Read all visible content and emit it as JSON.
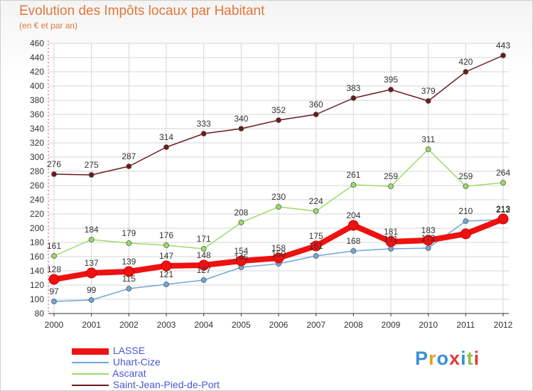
{
  "chart_data": {
    "type": "line",
    "title": "Evolution des Impôts locaux par Habitant",
    "subtitle": "(en € et par an)",
    "x": [
      "2000",
      "2001",
      "2002",
      "2003",
      "2004",
      "2005",
      "2006",
      "2007",
      "2008",
      "2009",
      "2010",
      "2011",
      "2012"
    ],
    "ylim": [
      80,
      460
    ],
    "yticks": [
      80,
      100,
      120,
      140,
      160,
      180,
      200,
      220,
      240,
      260,
      280,
      300,
      320,
      340,
      360,
      380,
      400,
      420,
      440,
      460
    ],
    "grid": true,
    "legend_position": "bottom-left",
    "series": [
      {
        "name": "LASSE",
        "color": "#ee1111",
        "values": [
          128,
          137,
          139,
          147,
          148,
          154,
          158,
          175,
          204,
          181,
          183,
          192,
          213
        ]
      },
      {
        "name": "Uhart-Cize",
        "color": "#6ea7d8",
        "values": [
          97,
          99,
          115,
          121,
          127,
          145,
          150,
          161,
          168,
          171,
          172,
          210,
          212
        ]
      },
      {
        "name": "Ascarat",
        "color": "#99dd66",
        "values": [
          161,
          184,
          179,
          176,
          171,
          208,
          230,
          224,
          261,
          259,
          311,
          259,
          264
        ]
      },
      {
        "name": "Saint-Jean-Pied-de-Port",
        "color": "#6b1a1a",
        "values": [
          276,
          275,
          287,
          314,
          333,
          340,
          352,
          360,
          383,
          395,
          379,
          420,
          443
        ]
      }
    ],
    "data_labels": {
      "LASSE": [
        "128",
        "137",
        "139",
        "147",
        "148",
        "154",
        "158",
        "175",
        "204",
        "181",
        "183",
        "",
        "213"
      ],
      "Uhart-Cize": [
        "97",
        "99",
        "115",
        "121",
        "127",
        "145",
        "150",
        "161",
        "168",
        "171",
        "172",
        "210",
        "212"
      ],
      "Ascarat": [
        "161",
        "184",
        "179",
        "176",
        "171",
        "208",
        "230",
        "224",
        "261",
        "259",
        "311",
        "259",
        "264"
      ],
      "Saint-Jean-Pied-de-Port": [
        "276",
        "275",
        "287",
        "314",
        "333",
        "340",
        "352",
        "360",
        "383",
        "395",
        "379",
        "420",
        "443"
      ]
    }
  },
  "logo": {
    "text": "Proxiti",
    "colors": [
      "#3a8fd6",
      "#e2a023",
      "#3a8fd6",
      "#e23a3a",
      "#3a8fd6",
      "#8bc34a",
      "#e23a3a"
    ]
  },
  "colors": {
    "title": "#e2763a",
    "axis": "#333333",
    "grid": "#d6d6d6",
    "legend_text": "#4a56d6"
  }
}
